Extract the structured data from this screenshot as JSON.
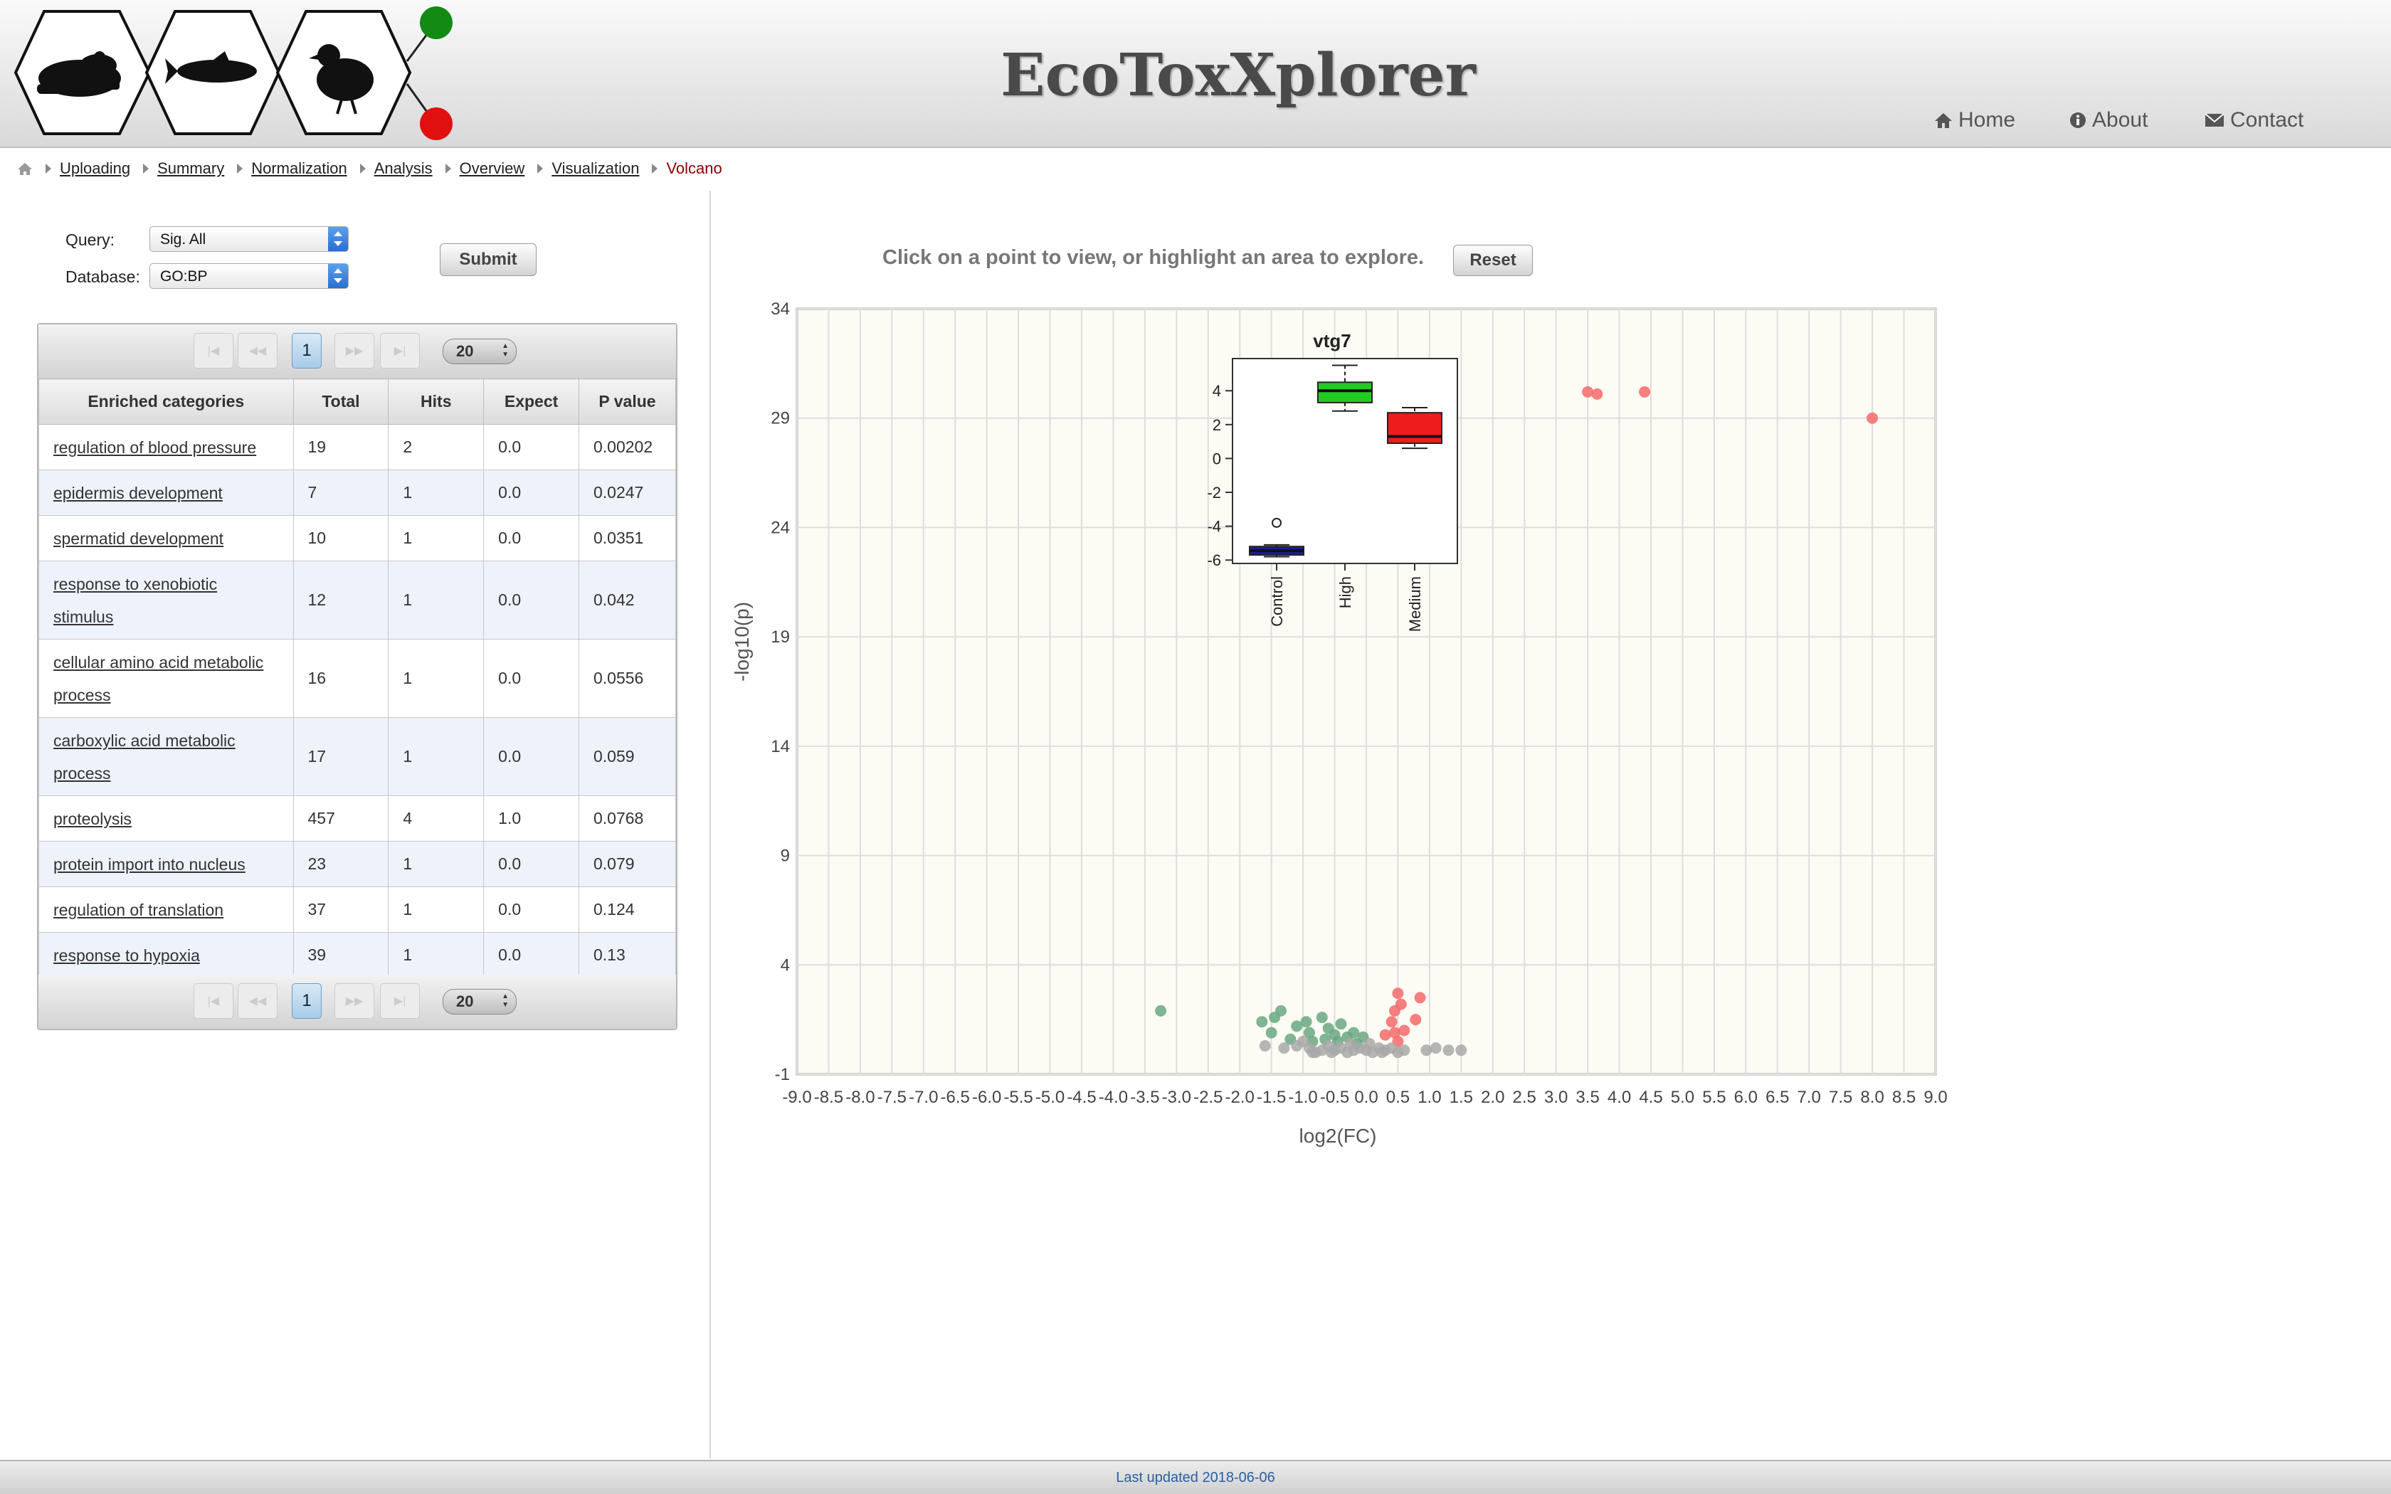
{
  "header": {
    "title": "EcoToxXplorer",
    "logo_icons": [
      "frog-icon",
      "fish-icon",
      "quail-icon"
    ],
    "nav": [
      {
        "label": "Home",
        "icon": "home-icon"
      },
      {
        "label": "About",
        "icon": "info-icon"
      },
      {
        "label": "Contact",
        "icon": "envelope-icon"
      }
    ]
  },
  "breadcrumb": {
    "home_icon": "home-icon",
    "items": [
      "Uploading",
      "Summary",
      "Normalization",
      "Analysis",
      "Overview",
      "Visualization"
    ],
    "current": "Volcano"
  },
  "query_form": {
    "query_label": "Query:",
    "query_value": "Sig. All",
    "database_label": "Database:",
    "database_value": "GO:BP",
    "submit_label": "Submit"
  },
  "enrichment_table": {
    "pager": {
      "current_page": "1",
      "page_size": "20"
    },
    "columns": [
      "Enriched categories",
      "Total",
      "Hits",
      "Expect",
      "P value"
    ],
    "rows": [
      {
        "category": "regulation of blood pressure",
        "total": "19",
        "hits": "2",
        "expect": "0.0",
        "p": "0.00202"
      },
      {
        "category": "epidermis development",
        "total": "7",
        "hits": "1",
        "expect": "0.0",
        "p": "0.0247"
      },
      {
        "category": "spermatid development",
        "total": "10",
        "hits": "1",
        "expect": "0.0",
        "p": "0.0351"
      },
      {
        "category": "response to xenobiotic stimulus",
        "total": "12",
        "hits": "1",
        "expect": "0.0",
        "p": "0.042"
      },
      {
        "category": "cellular amino acid metabolic process",
        "total": "16",
        "hits": "1",
        "expect": "0.0",
        "p": "0.0556"
      },
      {
        "category": "carboxylic acid metabolic process",
        "total": "17",
        "hits": "1",
        "expect": "0.0",
        "p": "0.059"
      },
      {
        "category": "proteolysis",
        "total": "457",
        "hits": "4",
        "expect": "1.0",
        "p": "0.0768"
      },
      {
        "category": "protein import into nucleus",
        "total": "23",
        "hits": "1",
        "expect": "0.0",
        "p": "0.079"
      },
      {
        "category": "regulation of translation",
        "total": "37",
        "hits": "1",
        "expect": "0.0",
        "p": "0.124"
      },
      {
        "category": "response to hypoxia",
        "total": "39",
        "hits": "1",
        "expect": "0.0",
        "p": "0.13"
      }
    ]
  },
  "plot_panel": {
    "instruction": "Click on a point to view, or highlight an area to explore.",
    "reset_label": "Reset"
  },
  "colors": {
    "up": "#f46a6a",
    "down": "#6aa882",
    "ns": "#a8a8a8",
    "box_control": "#1a1aa0",
    "box_high": "#22cc22",
    "box_medium": "#ee1c1c",
    "status_green": "#138a13",
    "status_red": "#e01010"
  },
  "chart_data": {
    "type": "scatter",
    "xlabel": "log2(FC)",
    "ylabel": "-log10(p)",
    "xlim": [
      -9.0,
      9.0
    ],
    "ylim": [
      -1,
      34
    ],
    "x_ticks": [
      -9.0,
      -8.5,
      -8.0,
      -7.5,
      -7.0,
      -6.5,
      -6.0,
      -5.5,
      -5.0,
      -4.5,
      -4.0,
      -3.5,
      -3.0,
      -2.5,
      -2.0,
      -1.5,
      -1.0,
      -0.5,
      0.0,
      0.5,
      1.0,
      1.5,
      2.0,
      2.5,
      3.0,
      3.5,
      4.0,
      4.5,
      5.0,
      5.5,
      6.0,
      6.5,
      7.0,
      7.5,
      8.0,
      8.5,
      9.0
    ],
    "y_ticks": [
      -1,
      4,
      9,
      14,
      19,
      24,
      29,
      34
    ],
    "grid": true,
    "series": [
      {
        "group": "up",
        "points": [
          [
            3.5,
            30.2
          ],
          [
            3.65,
            30.1
          ],
          [
            4.4,
            30.2
          ],
          [
            8.0,
            29.0
          ],
          [
            0.5,
            2.7
          ],
          [
            0.55,
            2.2
          ],
          [
            0.85,
            2.5
          ],
          [
            0.45,
            1.9
          ],
          [
            0.4,
            1.4
          ],
          [
            0.78,
            1.5
          ],
          [
            0.6,
            1.0
          ],
          [
            0.45,
            0.9
          ],
          [
            0.3,
            0.8
          ],
          [
            0.5,
            0.5
          ]
        ]
      },
      {
        "group": "down",
        "points": [
          [
            -3.25,
            1.9
          ],
          [
            -1.65,
            1.4
          ],
          [
            -1.45,
            1.6
          ],
          [
            -1.35,
            1.9
          ],
          [
            -1.1,
            1.2
          ],
          [
            -0.9,
            0.9
          ],
          [
            -0.7,
            1.6
          ],
          [
            -0.6,
            1.1
          ],
          [
            -0.5,
            0.8
          ],
          [
            -0.4,
            1.3
          ],
          [
            -0.3,
            0.7
          ],
          [
            -0.2,
            0.9
          ],
          [
            -0.15,
            0.4
          ],
          [
            -0.85,
            0.5
          ],
          [
            -1.2,
            0.6
          ],
          [
            -1.5,
            0.9
          ],
          [
            -0.65,
            0.6
          ],
          [
            -0.45,
            0.5
          ],
          [
            -0.05,
            0.7
          ],
          [
            -0.95,
            1.4
          ]
        ]
      },
      {
        "group": "ns",
        "points": [
          [
            -1.6,
            0.3
          ],
          [
            -1.3,
            0.2
          ],
          [
            -1.1,
            0.3
          ],
          [
            -0.9,
            0.2
          ],
          [
            -0.8,
            0.0
          ],
          [
            -0.7,
            0.1
          ],
          [
            -0.6,
            0.3
          ],
          [
            -0.5,
            0.1
          ],
          [
            -0.4,
            0.2
          ],
          [
            -0.3,
            0.0
          ],
          [
            -0.2,
            0.1
          ],
          [
            -0.1,
            0.2
          ],
          [
            0.0,
            0.1
          ],
          [
            0.1,
            0.0
          ],
          [
            0.2,
            0.2
          ],
          [
            0.3,
            0.1
          ],
          [
            0.4,
            0.2
          ],
          [
            0.5,
            0.0
          ],
          [
            0.6,
            0.1
          ],
          [
            -1.0,
            0.5
          ],
          [
            -0.85,
            0.0
          ],
          [
            -0.55,
            0.0
          ],
          [
            -0.25,
            0.4
          ],
          [
            0.05,
            0.4
          ],
          [
            0.25,
            0.0
          ],
          [
            0.95,
            0.1
          ],
          [
            1.1,
            0.2
          ],
          [
            1.3,
            0.1
          ],
          [
            1.5,
            0.1
          ]
        ]
      }
    ],
    "inset_boxplot": {
      "title": "vtg7",
      "categories": [
        "Control",
        "High",
        "Medium"
      ],
      "y_ticks": [
        4,
        2,
        0,
        -2,
        -4,
        -6
      ],
      "ylim": [
        -6.2,
        5.9
      ],
      "boxes": [
        {
          "name": "Control",
          "whisker_low": -5.8,
          "q1": -5.7,
          "median": -5.45,
          "q3": -5.2,
          "whisker_high": -5.1,
          "outliers": [
            -3.8
          ]
        },
        {
          "name": "High",
          "whisker_low": 2.8,
          "q1": 3.3,
          "median": 4.0,
          "q3": 4.5,
          "whisker_high": 5.5,
          "outliers": []
        },
        {
          "name": "Medium",
          "whisker_low": 0.6,
          "q1": 0.9,
          "median": 1.3,
          "q3": 2.7,
          "whisker_high": 3.0,
          "outliers": []
        }
      ]
    }
  },
  "footer": {
    "text": "Last updated 2018-06-06"
  }
}
